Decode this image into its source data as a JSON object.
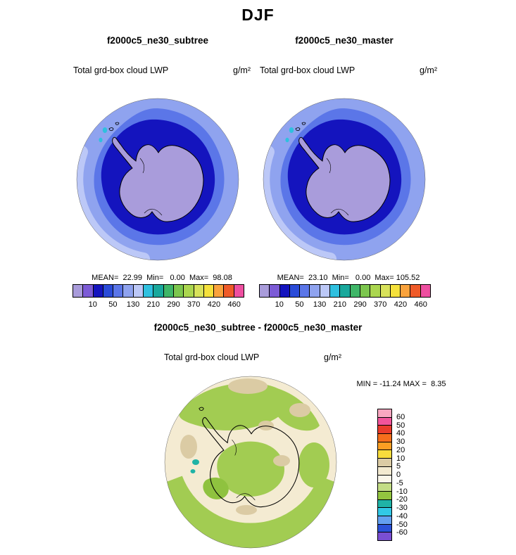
{
  "figure": {
    "title": "DJF"
  },
  "panels": {
    "left": {
      "title": "f2000c5_ne30_subtree",
      "field_label": "Total grd-box cloud LWP",
      "units": "g/m²",
      "stats_line": "MEAN=  22.99  Min=   0.00  Max=  98.08"
    },
    "right": {
      "title": "f2000c5_ne30_master",
      "field_label": "Total grd-box cloud LWP",
      "units": "g/m²",
      "stats_line": "MEAN=  23.10  Min=   0.00  Max= 105.52"
    },
    "diff": {
      "title": "f2000c5_ne30_subtree - f2000c5_ne30_master",
      "field_label": "Total grd-box cloud LWP",
      "units": "g/m²",
      "minmax_line": "MIN = -11.24 MAX =  8.35"
    }
  },
  "chart_data": [
    {
      "type": "heatmap",
      "projection": "south-polar-stereographic",
      "model": "f2000c5_ne30_subtree",
      "season": "DJF",
      "variable": "Total grd-box cloud LWP",
      "units": "g/m²",
      "stats": {
        "mean": 22.99,
        "min": 0.0,
        "max": 98.08
      },
      "colorbar": {
        "orientation": "horizontal",
        "ticks": [
          "10",
          "50",
          "130",
          "210",
          "290",
          "370",
          "420",
          "460"
        ],
        "tick_rule": "labels mark every second cell boundary",
        "colors": [
          "#A99CDB",
          "#7C5BD6",
          "#1414BE",
          "#2A4BD8",
          "#5B76E8",
          "#8FA3EF",
          "#BCC8F7",
          "#2FC0DF",
          "#19A89C",
          "#3FB668",
          "#7CC64E",
          "#ABD64F",
          "#D8E25B",
          "#F5E13C",
          "#F9A23C",
          "#EF5A28",
          "#EE4FA0"
        ]
      },
      "map_palette": {
        "outer_ring": "#8FA3EF",
        "rim_light": "#BCC8F7",
        "mid_ring": "#5B76E8",
        "inner_ring": "#1414BE",
        "continent": "#A99CDB",
        "speck": "#2FC0DF"
      },
      "pattern_note": "Antarctic continent below 10 g/m² (lavender); LWP rises outward through navy and blue bands to ~98 g/m² at the 60S map edge"
    },
    {
      "type": "heatmap",
      "projection": "south-polar-stereographic",
      "model": "f2000c5_ne30_master",
      "season": "DJF",
      "variable": "Total grd-box cloud LWP",
      "units": "g/m²",
      "stats": {
        "mean": 23.1,
        "min": 0.0,
        "max": 105.52
      },
      "colorbar": {
        "orientation": "horizontal",
        "ticks": [
          "10",
          "50",
          "130",
          "210",
          "290",
          "370",
          "420",
          "460"
        ],
        "tick_rule": "labels mark every second cell boundary",
        "colors": [
          "#A99CDB",
          "#7C5BD6",
          "#1414BE",
          "#2A4BD8",
          "#5B76E8",
          "#8FA3EF",
          "#BCC8F7",
          "#2FC0DF",
          "#19A89C",
          "#3FB668",
          "#7CC64E",
          "#ABD64F",
          "#D8E25B",
          "#F5E13C",
          "#F9A23C",
          "#EF5A28",
          "#EE4FA0"
        ]
      },
      "map_palette": {
        "outer_ring": "#8FA3EF",
        "rim_light": "#BCC8F7",
        "mid_ring": "#5B76E8",
        "inner_ring": "#1414BE",
        "continent": "#A99CDB",
        "speck": "#2FC0DF"
      },
      "pattern_note": "Antarctic continent below 10 g/m² (lavender); LWP rises outward through navy and blue bands to ~105 g/m² at the 60S map edge"
    },
    {
      "type": "heatmap",
      "projection": "south-polar-stereographic",
      "model": "f2000c5_ne30_subtree - f2000c5_ne30_master",
      "season": "DJF",
      "variable": "Total grd-box cloud LWP",
      "units": "g/m²",
      "stats": {
        "min": -11.24,
        "max": 8.35
      },
      "colorbar": {
        "orientation": "vertical",
        "ticks": [
          "60",
          "50",
          "40",
          "30",
          "20",
          "10",
          "5",
          "0",
          "-5",
          "-10",
          "-20",
          "-30",
          "-40",
          "-50",
          "-60"
        ],
        "tick_rule": "labels mark each cell boundary, top to bottom",
        "colors": [
          "#F9A7C0",
          "#F2549B",
          "#E93B2C",
          "#F56E1C",
          "#FB9E23",
          "#F8DC3C",
          "#DBCBA4",
          "#F3EAD0",
          "#FAF6E9",
          "#C3DD85",
          "#93C53F",
          "#1FB3A6",
          "#32C8E6",
          "#64A0F0",
          "#2B52D8",
          "#7A4FD2"
        ]
      },
      "map_palette": {
        "background": "#F4EBD2",
        "tan": "#DBCBA4",
        "green": "#A2CC52",
        "green_dark": "#8FC23F",
        "teal": "#1FB3A6"
      },
      "pattern_note": "Differences between -11 and +8 g/m²: cream/tan regions (0 to +8) with green patches (-5 to -11) over the pole, top arc and lower rim; small teal spots near the peninsula"
    }
  ]
}
